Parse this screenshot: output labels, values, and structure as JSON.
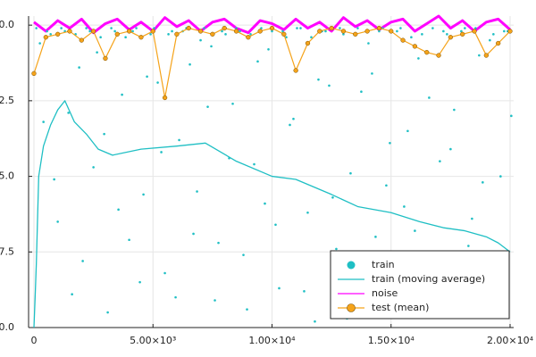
{
  "chart_data": {
    "type": "scatter",
    "xlim": [
      -225,
      20150
    ],
    "ylim": [
      -10,
      0.3
    ],
    "xticks": [
      0,
      {
        "value": 5000,
        "label": "5.00×10³"
      },
      {
        "value": 10000,
        "label": "1.00×10⁴"
      },
      {
        "value": 15000,
        "label": "1.50×10⁴"
      },
      {
        "value": 20000,
        "label": "2.00×10⁴"
      }
    ],
    "yticks": [
      {
        "value": -10,
        "label": "-10.0"
      },
      {
        "value": -7.5,
        "label": "-7.5"
      },
      {
        "value": -5,
        "label": "-5.0"
      },
      {
        "value": -2.5,
        "label": "-2.5"
      },
      {
        "value": 0,
        "label": "0.0"
      }
    ],
    "grid": true,
    "legend": "bottom right",
    "series": [
      {
        "name": "train",
        "color": "#1fbfc4",
        "mode": "markers",
        "x": [
          100,
          400,
          700,
          1000,
          1300,
          1600,
          1900,
          2200,
          2500,
          2800,
          3100,
          3400,
          3700,
          4000,
          4300,
          4600,
          4900,
          5200,
          5500,
          5800,
          6100,
          6400,
          6700,
          7000,
          7300,
          7600,
          7900,
          8200,
          8500,
          8800,
          9100,
          9400,
          9700,
          10000,
          10300,
          10600,
          10900,
          11200,
          11500,
          11800,
          12100,
          12400,
          12700,
          13000,
          13300,
          13600,
          13900,
          14200,
          14500,
          14800,
          15100,
          15400,
          15700,
          16000,
          16300,
          16600,
          16900,
          17200,
          17500,
          17800,
          18100,
          18400,
          18700,
          19000,
          19300,
          19600,
          19900,
          250,
          550,
          850,
          1150,
          1450,
          1750,
          2050,
          2350,
          2650,
          2950,
          3250,
          3550,
          3850,
          4150,
          4450,
          4750,
          5050,
          5350,
          5650,
          5950,
          6250,
          6550,
          6850,
          7150,
          7450,
          7750,
          8050,
          8350,
          8650,
          8950,
          9250,
          9550,
          9850,
          10150,
          10450,
          10750,
          11050,
          11350,
          11650,
          11950,
          12250,
          12550,
          12850,
          13150,
          13450,
          13750,
          14050,
          14350,
          14650,
          14950,
          15250,
          15550,
          15850,
          16150,
          16450,
          16750,
          17050,
          17350,
          17650,
          17950,
          18250,
          18550,
          18850,
          19150,
          19450,
          19750,
          20050
        ],
        "values": [
          -0.1,
          -3.2,
          -0.3,
          -6.5,
          -0.2,
          -8.9,
          -1.4,
          -0.1,
          -4.7,
          -0.4,
          -9.5,
          -0.2,
          -2.3,
          -7.1,
          -0.1,
          -5.6,
          -0.3,
          -1.9,
          -8.2,
          -0.2,
          -3.8,
          -0.1,
          -6.9,
          -0.5,
          -2.7,
          -9.1,
          -0.2,
          -4.4,
          -0.1,
          -7.6,
          -0.3,
          -1.2,
          -5.9,
          -0.2,
          -8.7,
          -0.4,
          -3.1,
          -0.1,
          -6.2,
          -9.8,
          -0.2,
          -2.0,
          -7.4,
          -0.3,
          -4.9,
          -0.1,
          -8.3,
          -1.6,
          -0.2,
          -5.3,
          -9.3,
          -0.1,
          -3.5,
          -6.8,
          -0.3,
          -2.4,
          -8.0,
          -0.2,
          -4.1,
          -9.6,
          -0.1,
          -6.4,
          -1.0,
          -7.9,
          -0.3,
          -5.0,
          -0.2,
          -0.6,
          -0.2,
          -5.1,
          -0.1,
          -2.9,
          -0.3,
          -7.8,
          -0.2,
          -0.9,
          -3.6,
          -0.1,
          -6.1,
          -0.4,
          -0.2,
          -8.5,
          -1.7,
          -0.1,
          -4.2,
          -0.3,
          -9.0,
          -0.2,
          -1.3,
          -5.5,
          -0.1,
          -0.7,
          -7.2,
          -0.3,
          -2.6,
          -0.2,
          -9.4,
          -4.6,
          -0.1,
          -0.8,
          -6.6,
          -0.2,
          -3.3,
          -0.1,
          -8.8,
          -0.4,
          -1.8,
          -0.2,
          -5.7,
          -0.1,
          -9.7,
          -0.3,
          -2.2,
          -0.6,
          -7.0,
          -0.1,
          -3.9,
          -0.2,
          -6.0,
          -0.4,
          -1.1,
          -8.6,
          -0.1,
          -4.5,
          -0.3,
          -2.8,
          -0.2,
          -7.3,
          -0.1,
          -5.2,
          -0.5,
          -9.2,
          -0.2,
          -3.0
        ]
      },
      {
        "name": "train (moving average)",
        "color": "#1fbfc4",
        "mode": "lines",
        "x": [
          0,
          50,
          100,
          200,
          400,
          700,
          1000,
          1300,
          1700,
          2200,
          2700,
          3300,
          4500,
          6000,
          7200,
          8500,
          10000,
          11000,
          12500,
          13600,
          15000,
          16200,
          17200,
          18100,
          19000,
          19500,
          20000
        ],
        "values": [
          -10,
          -9,
          -7.9,
          -5.0,
          -4.0,
          -3.3,
          -2.8,
          -2.5,
          -3.2,
          -3.6,
          -4.1,
          -4.3,
          -4.1,
          -4.0,
          -3.9,
          -4.5,
          -5.0,
          -5.1,
          -5.6,
          -6.0,
          -6.2,
          -6.5,
          -6.7,
          -6.8,
          -7.0,
          -7.2,
          -7.5
        ]
      },
      {
        "name": "noise",
        "color": "#ff00ff",
        "mode": "lines",
        "x": [
          0,
          500,
          1000,
          1500,
          2000,
          2500,
          3000,
          3500,
          4000,
          4500,
          5000,
          5500,
          6000,
          6500,
          7000,
          7500,
          8000,
          8500,
          9000,
          9500,
          10000,
          10500,
          11000,
          11500,
          12000,
          12500,
          13000,
          13500,
          14000,
          14500,
          15000,
          15500,
          16000,
          16500,
          17000,
          17500,
          18000,
          18500,
          19000,
          19500,
          20000
        ],
        "values": [
          0.1,
          -0.2,
          0.15,
          -0.1,
          0.2,
          -0.25,
          0.05,
          0.2,
          -0.15,
          0.1,
          -0.2,
          0.25,
          -0.05,
          0.15,
          -0.2,
          0.1,
          0.2,
          -0.1,
          -0.25,
          0.15,
          0.05,
          -0.15,
          0.2,
          -0.1,
          0.1,
          -0.2,
          0.25,
          -0.05,
          0.15,
          -0.15,
          0.1,
          0.2,
          -0.2,
          0.05,
          0.3,
          -0.1,
          0.15,
          -0.2,
          0.1,
          0.2,
          -0.15
        ]
      },
      {
        "name": "test (mean)",
        "color": "#f5a31a",
        "mode": "lines+markers",
        "x": [
          0,
          500,
          1000,
          1500,
          2000,
          2500,
          3000,
          3500,
          4000,
          4500,
          5000,
          5500,
          6000,
          6500,
          7000,
          7500,
          8000,
          8500,
          9000,
          9500,
          10000,
          10500,
          11000,
          11500,
          12000,
          12500,
          13000,
          13500,
          14000,
          14500,
          15000,
          15500,
          16000,
          16500,
          17000,
          17500,
          18000,
          18500,
          19000,
          19500,
          20000
        ],
        "values": [
          -1.6,
          -0.4,
          -0.3,
          -0.2,
          -0.5,
          -0.2,
          -1.1,
          -0.3,
          -0.2,
          -0.4,
          -0.2,
          -2.4,
          -0.3,
          -0.1,
          -0.2,
          -0.3,
          -0.1,
          -0.2,
          -0.4,
          -0.2,
          -0.1,
          -0.3,
          -1.5,
          -0.6,
          -0.2,
          -0.1,
          -0.2,
          -0.3,
          -0.2,
          -0.1,
          -0.2,
          -0.5,
          -0.7,
          -0.9,
          -1.0,
          -0.4,
          -0.3,
          -0.2,
          -1.0,
          -0.6,
          -0.2
        ]
      }
    ]
  }
}
